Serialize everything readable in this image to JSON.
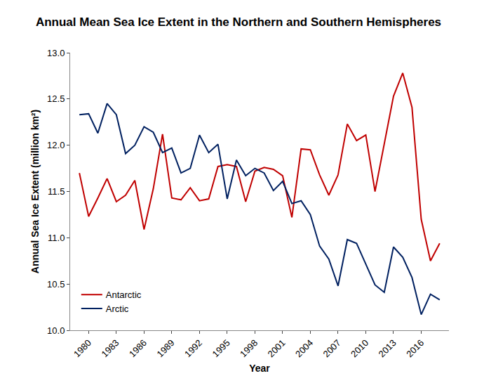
{
  "chart_data": {
    "type": "line",
    "title": "Annual Mean Sea Ice Extent in the Northern and Southern Hemispheres",
    "x_label": "Year",
    "y_label": "Annual Sea Ice Extent (million km²)",
    "x": [
      1979,
      1980,
      1981,
      1982,
      1983,
      1984,
      1985,
      1986,
      1987,
      1988,
      1989,
      1990,
      1991,
      1992,
      1993,
      1994,
      1995,
      1996,
      1997,
      1998,
      1999,
      2000,
      2001,
      2002,
      2003,
      2004,
      2005,
      2006,
      2007,
      2008,
      2009,
      2010,
      2011,
      2012,
      2013,
      2014,
      2015,
      2016,
      2017,
      2018
    ],
    "series": [
      {
        "name": "Antarctic",
        "color": "#c00000",
        "values": [
          11.7,
          11.23,
          11.43,
          11.64,
          11.39,
          11.46,
          11.62,
          11.09,
          11.53,
          12.12,
          11.43,
          11.41,
          11.54,
          11.4,
          11.42,
          11.77,
          11.79,
          11.77,
          11.39,
          11.72,
          11.76,
          11.74,
          11.67,
          11.22,
          11.96,
          11.95,
          11.68,
          11.46,
          11.68,
          12.23,
          12.05,
          12.11,
          11.5,
          12.02,
          12.53,
          12.78,
          12.41,
          11.2,
          10.75,
          10.94
        ]
      },
      {
        "name": "Arctic",
        "color": "#002060",
        "values": [
          12.33,
          12.34,
          12.13,
          12.45,
          12.33,
          11.91,
          12.0,
          12.2,
          12.14,
          11.92,
          11.97,
          11.7,
          11.75,
          12.11,
          11.92,
          12.01,
          11.42,
          11.84,
          11.67,
          11.75,
          11.7,
          11.51,
          11.61,
          11.37,
          11.4,
          11.25,
          10.91,
          10.77,
          10.48,
          10.98,
          10.94,
          10.72,
          10.49,
          10.41,
          10.9,
          10.79,
          10.57,
          10.17,
          10.39,
          10.33
        ]
      }
    ],
    "xlim": [
      1978,
      2019
    ],
    "xticks": [
      1980,
      1983,
      1986,
      1989,
      1992,
      1995,
      1998,
      2001,
      2004,
      2007,
      2010,
      2013,
      2016
    ],
    "ylim": [
      10,
      13
    ],
    "yticks": [
      {
        "value": 10,
        "label": "10.0"
      },
      10.5,
      {
        "value": 11,
        "label": "11.0"
      },
      11.5,
      {
        "value": 12,
        "label": "12.0"
      },
      12.5,
      {
        "value": 13,
        "label": "13.0"
      }
    ],
    "grid": false,
    "legend": "lower left"
  }
}
